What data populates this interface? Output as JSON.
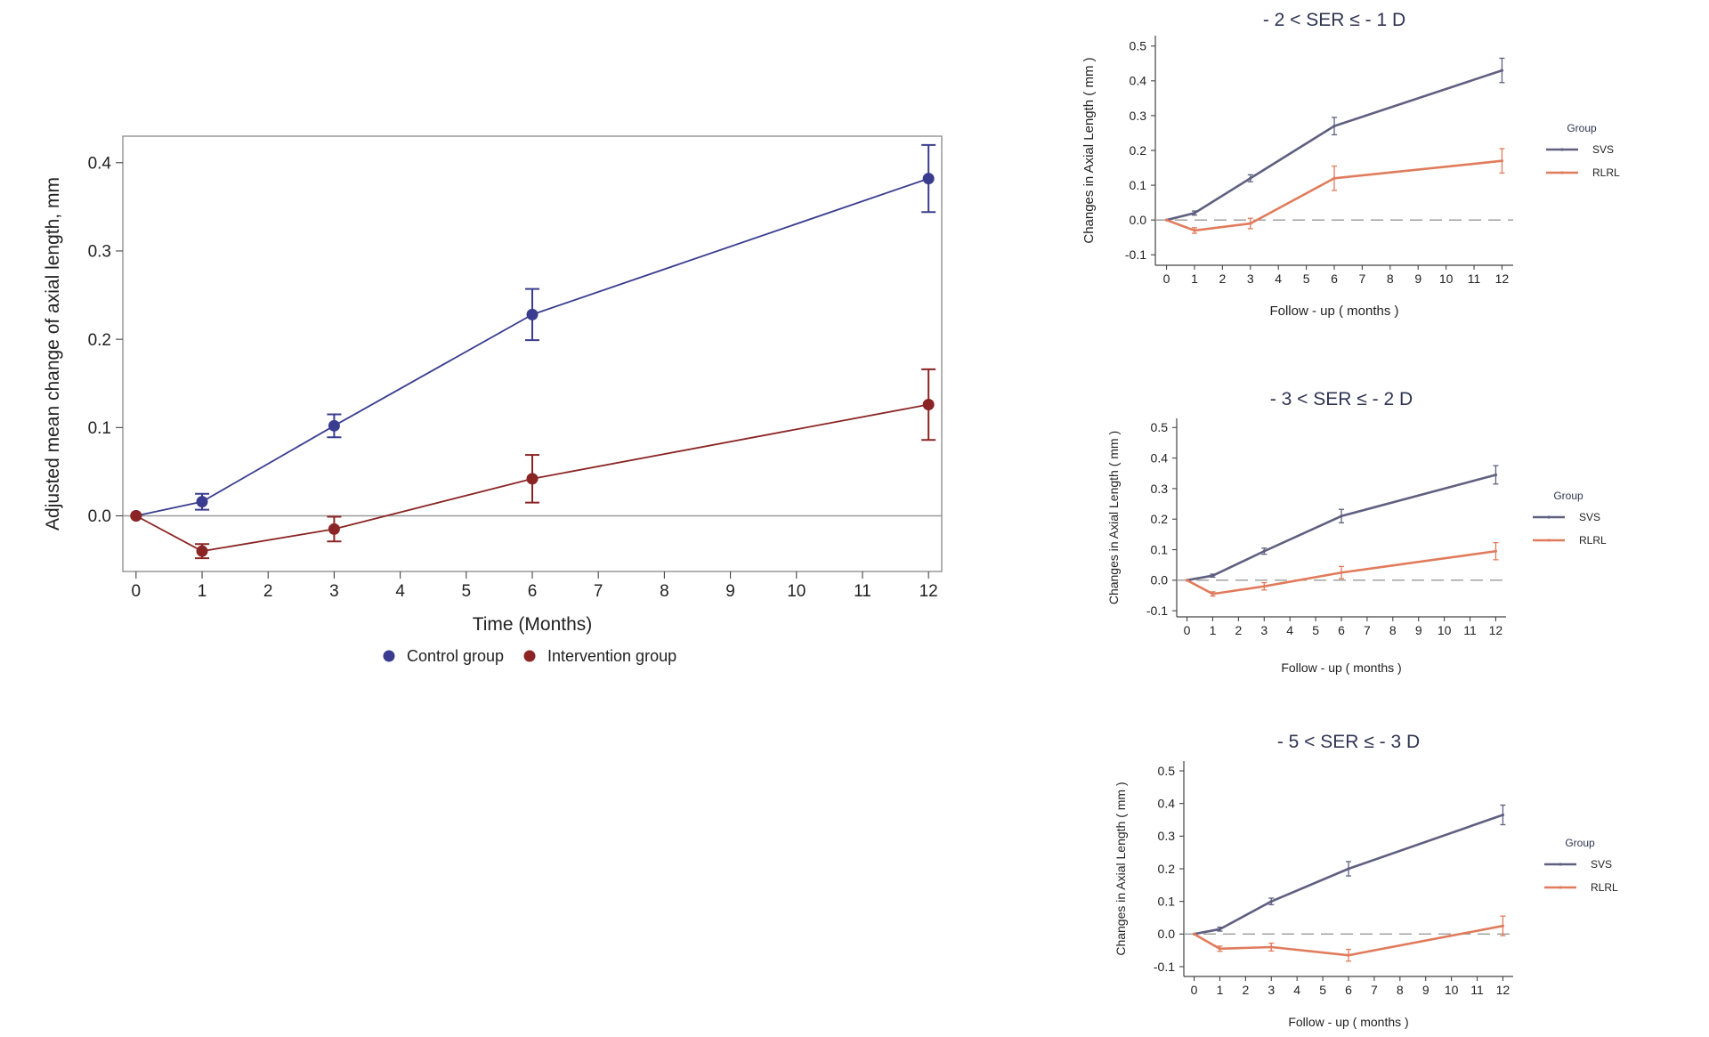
{
  "chart_data": [
    {
      "type": "line",
      "title": "",
      "xlabel": "Time (Months)",
      "ylabel": "Adjusted mean change of axial length, mm",
      "x_ticks": [
        "0",
        "1",
        "2",
        "3",
        "4",
        "5",
        "6",
        "7",
        "8",
        "9",
        "10",
        "11",
        "12"
      ],
      "y_ticks": [
        "0.0",
        "0.1",
        "0.2",
        "0.3",
        "0.4"
      ],
      "xlim": [
        -0.2,
        12.2
      ],
      "ylim": [
        -0.063,
        0.43
      ],
      "reference_line": 0,
      "legend": {
        "position": "bottom"
      },
      "series": [
        {
          "name": "Control group",
          "color": "#3a3d8f",
          "x": [
            0,
            1,
            3,
            6,
            12
          ],
          "y": [
            0.0,
            0.016,
            0.102,
            0.228,
            0.382
          ],
          "err": [
            0,
            0.009,
            0.013,
            0.029,
            0.038
          ]
        },
        {
          "name": "Intervention group",
          "color": "#8b2525",
          "x": [
            0,
            1,
            3,
            6,
            12
          ],
          "y": [
            0.0,
            -0.04,
            -0.015,
            0.042,
            0.126
          ],
          "err": [
            0,
            0.008,
            0.014,
            0.027,
            0.04
          ]
        }
      ]
    },
    {
      "type": "line",
      "title": "- 2 < SER ≤ - 1 D",
      "xlabel": "Follow - up ( months )",
      "ylabel": "Changes in Axial Length ( mm )",
      "x_ticks": [
        "0",
        "1",
        "2",
        "3",
        "4",
        "5",
        "6",
        "7",
        "8",
        "9",
        "10",
        "11",
        "12"
      ],
      "y_ticks": [
        "-0.1",
        "0.0",
        "0.1",
        "0.2",
        "0.3",
        "0.4",
        "0.5"
      ],
      "xlim": [
        -0.4,
        12.4
      ],
      "ylim": [
        -0.13,
        0.53
      ],
      "reference_line": 0,
      "legend": {
        "title": "Group",
        "position": "right"
      },
      "series": [
        {
          "name": "SVS",
          "color": "#5f6080",
          "x": [
            0,
            1,
            3,
            6,
            12
          ],
          "y": [
            0.0,
            0.02,
            0.12,
            0.27,
            0.43
          ],
          "err": [
            0,
            0.006,
            0.01,
            0.025,
            0.035
          ]
        },
        {
          "name": "RLRL",
          "color": "#e07b5c",
          "x": [
            0,
            1,
            3,
            6,
            12
          ],
          "y": [
            0.0,
            -0.03,
            -0.01,
            0.12,
            0.17
          ],
          "err": [
            0,
            0.008,
            0.015,
            0.035,
            0.035
          ]
        }
      ]
    },
    {
      "type": "line",
      "title": "- 3 < SER ≤ - 2 D",
      "xlabel": "Follow - up ( months )",
      "ylabel": "Changes in Axial Length ( mm )",
      "x_ticks": [
        "0",
        "1",
        "2",
        "3",
        "4",
        "5",
        "6",
        "7",
        "8",
        "9",
        "10",
        "11",
        "12"
      ],
      "y_ticks": [
        "-0.1",
        "0.0",
        "0.1",
        "0.2",
        "0.3",
        "0.4",
        "0.5"
      ],
      "xlim": [
        -0.4,
        12.4
      ],
      "ylim": [
        -0.12,
        0.53
      ],
      "reference_line": 0,
      "legend": {
        "title": "Group",
        "position": "right"
      },
      "series": [
        {
          "name": "SVS",
          "color": "#5f6080",
          "x": [
            0,
            1,
            3,
            6,
            12
          ],
          "y": [
            0.0,
            0.015,
            0.095,
            0.21,
            0.345
          ],
          "err": [
            0,
            0.005,
            0.01,
            0.022,
            0.03
          ]
        },
        {
          "name": "RLRL",
          "color": "#e07b5c",
          "x": [
            0,
            1,
            3,
            6,
            12
          ],
          "y": [
            0.0,
            -0.045,
            -0.02,
            0.025,
            0.095
          ],
          "err": [
            0,
            0.007,
            0.012,
            0.02,
            0.028
          ]
        }
      ]
    },
    {
      "type": "line",
      "title": "- 5 < SER ≤ - 3 D",
      "xlabel": "Follow - up ( months )",
      "ylabel": "Changes in Axial Length ( mm )",
      "x_ticks": [
        "0",
        "1",
        "2",
        "3",
        "4",
        "5",
        "6",
        "7",
        "8",
        "9",
        "10",
        "11",
        "12"
      ],
      "y_ticks": [
        "-0.1",
        "0.0",
        "0.1",
        "0.2",
        "0.3",
        "0.4",
        "0.5"
      ],
      "xlim": [
        -0.4,
        12.4
      ],
      "ylim": [
        -0.13,
        0.53
      ],
      "reference_line": 0,
      "legend": {
        "title": "Group",
        "position": "right"
      },
      "series": [
        {
          "name": "SVS",
          "color": "#5f6080",
          "x": [
            0,
            1,
            3,
            6,
            12
          ],
          "y": [
            0.0,
            0.015,
            0.1,
            0.2,
            0.365
          ],
          "err": [
            0,
            0.006,
            0.01,
            0.022,
            0.03
          ]
        },
        {
          "name": "RLRL",
          "color": "#e07b5c",
          "x": [
            0,
            1,
            3,
            6,
            12
          ],
          "y": [
            0.0,
            -0.045,
            -0.04,
            -0.065,
            0.025
          ],
          "err": [
            0,
            0.008,
            0.012,
            0.018,
            0.03
          ]
        }
      ]
    }
  ]
}
